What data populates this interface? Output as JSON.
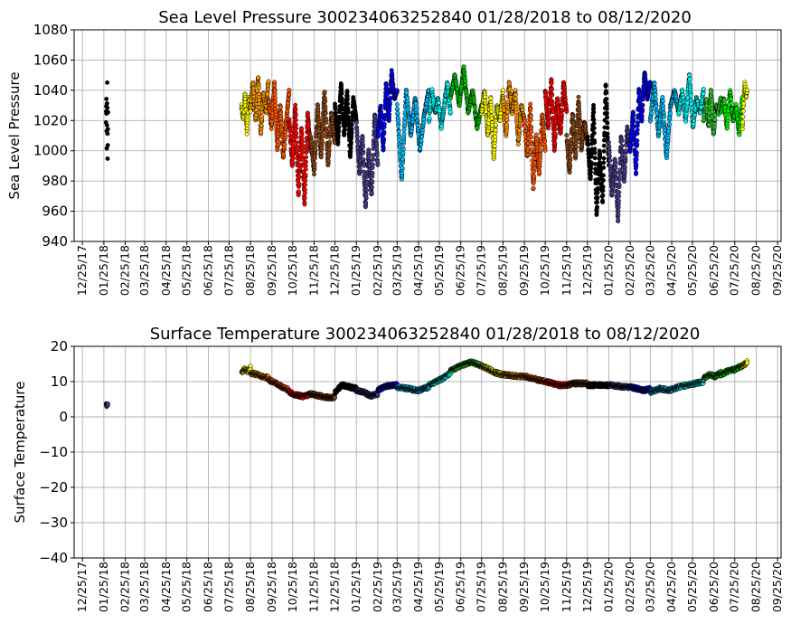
{
  "chart_data": [
    {
      "type": "scatter",
      "title": "Sea Level Pressure 300234063252840  01/28/2018 to 08/12/2020",
      "ylabel": "Sea Level Pressure",
      "xlabel": "",
      "ylim": [
        940,
        1080
      ],
      "yticks": [
        940,
        960,
        980,
        1000,
        1020,
        1040,
        1060,
        1080
      ],
      "xlim": [
        "2017-12-13",
        "2020-09-30"
      ],
      "xticks": [
        "12/25/17",
        "01/25/18",
        "02/25/18",
        "03/25/18",
        "04/25/18",
        "05/25/18",
        "06/25/18",
        "07/25/18",
        "08/25/18",
        "09/25/18",
        "10/25/18",
        "11/25/18",
        "12/25/18",
        "01/25/19",
        "02/25/19",
        "03/25/19",
        "04/25/19",
        "05/25/19",
        "06/25/19",
        "07/25/19",
        "08/25/19",
        "09/25/19",
        "10/25/19",
        "11/25/19",
        "12/25/19",
        "01/25/20",
        "02/25/20",
        "03/25/20",
        "04/25/20",
        "05/25/20",
        "06/25/20",
        "07/25/20",
        "08/25/20",
        "09/25/20"
      ],
      "grid": true,
      "segments": [
        {
          "start": "2018-01-28",
          "end": "2018-01-31",
          "color": "#000000",
          "values": [
            1020,
            1035,
            1002,
            1045,
            994,
            1025
          ]
        },
        {
          "start": "2018-08-12",
          "end": "2018-08-25",
          "color": "#ffff00",
          "values": [
            1030,
            1020,
            1038,
            1012,
            1035,
            1025
          ]
        },
        {
          "start": "2018-08-25",
          "end": "2018-09-20",
          "color": "#ff9900",
          "values": [
            1030,
            1045,
            1020,
            1050,
            1010,
            1038,
            1025,
            1047
          ]
        },
        {
          "start": "2018-09-20",
          "end": "2018-10-20",
          "color": "#ff5500",
          "values": [
            1035,
            1015,
            1045,
            1000,
            1030,
            995,
            1020,
            1040
          ]
        },
        {
          "start": "2018-10-20",
          "end": "2018-11-20",
          "color": "#ff0000",
          "values": [
            1020,
            990,
            1030,
            970,
            1015,
            965,
            1025,
            1000
          ]
        },
        {
          "start": "2018-11-20",
          "end": "2018-12-25",
          "color": "#8b4513",
          "values": [
            1010,
            985,
            1030,
            995,
            1040,
            990,
            1025,
            1005
          ]
        },
        {
          "start": "2018-12-25",
          "end": "2019-01-25",
          "color": "#000000",
          "values": [
            1030,
            1005,
            1045,
            1010,
            1040,
            995,
            1035,
            1020
          ]
        },
        {
          "start": "2019-01-25",
          "end": "2019-02-25",
          "color": "#483d8b",
          "values": [
            1020,
            985,
            1010,
            962,
            1000,
            970,
            1025,
            990
          ]
        },
        {
          "start": "2019-02-25",
          "end": "2019-03-25",
          "color": "#0000ff",
          "values": [
            1010,
            1030,
            1000,
            1045,
            1020,
            1052,
            1035,
            1040
          ]
        },
        {
          "start": "2019-03-25",
          "end": "2019-05-10",
          "color": "#00bfff",
          "values": [
            1030,
            980,
            1040,
            1010,
            1035,
            1000,
            1025,
            1040
          ]
        },
        {
          "start": "2019-05-10",
          "end": "2019-06-10",
          "color": "#00ffff",
          "values": [
            1020,
            1040,
            1025,
            1035,
            1015,
            1030,
            1045,
            1025
          ]
        },
        {
          "start": "2019-06-10",
          "end": "2019-07-25",
          "color": "#00cc00",
          "values": [
            1035,
            1050,
            1030,
            1055,
            1025,
            1040,
            1015,
            1030
          ]
        },
        {
          "start": "2019-07-25",
          "end": "2019-08-25",
          "color": "#ffff00",
          "values": [
            1025,
            1040,
            1010,
            1035,
            995,
            1030,
            1020,
            1040
          ]
        },
        {
          "start": "2019-08-25",
          "end": "2019-09-25",
          "color": "#ff9900",
          "values": [
            1035,
            1010,
            1045,
            1025,
            1040,
            1005,
            1030,
            1020
          ]
        },
        {
          "start": "2019-09-25",
          "end": "2019-10-25",
          "color": "#ff5500",
          "values": [
            1020,
            995,
            1030,
            975,
            1010,
            985,
            1025,
            1000
          ]
        },
        {
          "start": "2019-10-25",
          "end": "2019-11-25",
          "color": "#ff0000",
          "values": [
            1040,
            1015,
            1048,
            1000,
            1035,
            1010,
            1045,
            1025
          ]
        },
        {
          "start": "2019-11-25",
          "end": "2019-12-25",
          "color": "#8b4513",
          "values": [
            1010,
            985,
            1025,
            995,
            1035,
            1000,
            1020,
            1005
          ]
        },
        {
          "start": "2019-12-25",
          "end": "2020-01-25",
          "color": "#000000",
          "values": [
            1010,
            980,
            1030,
            957,
            1000,
            965,
            1045,
            990
          ]
        },
        {
          "start": "2020-01-25",
          "end": "2020-02-25",
          "color": "#483d8b",
          "values": [
            1005,
            970,
            995,
            953,
            1010,
            980,
            1015,
            1000
          ]
        },
        {
          "start": "2020-02-25",
          "end": "2020-03-25",
          "color": "#0000ff",
          "values": [
            1000,
            1025,
            985,
            1040,
            1020,
            1053,
            1035,
            1045
          ]
        },
        {
          "start": "2020-03-25",
          "end": "2020-05-05",
          "color": "#00bfff",
          "values": [
            1020,
            1045,
            1010,
            1035,
            995,
            1030,
            1040,
            1025
          ]
        },
        {
          "start": "2020-05-05",
          "end": "2020-06-10",
          "color": "#00ffff",
          "values": [
            1025,
            1040,
            1020,
            1050,
            1015,
            1035,
            1025,
            1040
          ]
        },
        {
          "start": "2020-06-10",
          "end": "2020-07-05",
          "color": "#33cc33",
          "values": [
            1020,
            1035,
            1015,
            1040,
            1010,
            1030,
            1025,
            1035
          ]
        },
        {
          "start": "2020-07-05",
          "end": "2020-08-05",
          "color": "#00ff00",
          "values": [
            1025,
            1035,
            1015,
            1040,
            1020,
            1030,
            1010,
            1035
          ]
        },
        {
          "start": "2020-08-05",
          "end": "2020-08-12",
          "color": "#ffff00",
          "values": [
            1015,
            1030,
            1045,
            1035,
            1040
          ]
        }
      ]
    },
    {
      "type": "scatter",
      "title": "Surface Temperature 300234063252840  01/28/2018 to 08/12/2020",
      "ylabel": "Surface Temperature",
      "xlabel": "",
      "ylim": [
        -40,
        20
      ],
      "yticks": [
        -40,
        -30,
        -20,
        -10,
        0,
        10,
        20
      ],
      "xlim": [
        "2017-12-13",
        "2020-09-30"
      ],
      "xticks": [
        "12/25/17",
        "01/25/18",
        "02/25/18",
        "03/25/18",
        "04/25/18",
        "05/25/18",
        "06/25/18",
        "07/25/18",
        "08/25/18",
        "09/25/18",
        "10/25/18",
        "11/25/18",
        "12/25/18",
        "01/25/19",
        "02/25/19",
        "03/25/19",
        "04/25/19",
        "05/25/19",
        "06/25/19",
        "07/25/19",
        "08/25/19",
        "09/25/19",
        "10/25/19",
        "11/25/19",
        "12/25/19",
        "01/25/20",
        "02/25/20",
        "03/25/20",
        "04/25/20",
        "05/25/20",
        "06/25/20",
        "07/25/20",
        "08/25/20",
        "09/25/20"
      ],
      "grid": true,
      "segments": [
        {
          "start": "2018-01-28",
          "end": "2018-01-31",
          "color": "#483d8b",
          "values": [
            3.5,
            3.4,
            3.6,
            3.5
          ]
        },
        {
          "start": "2018-08-12",
          "end": "2018-08-25",
          "color": "#ffff00",
          "values": [
            12.5,
            13.5,
            12.8,
            14.0
          ]
        },
        {
          "start": "2018-08-25",
          "end": "2018-09-20",
          "color": "#ff9900",
          "values": [
            12.5,
            12.0,
            11.5,
            11.0
          ]
        },
        {
          "start": "2018-09-20",
          "end": "2018-10-20",
          "color": "#ff5500",
          "values": [
            10.5,
            9.5,
            8.5,
            7.5
          ]
        },
        {
          "start": "2018-10-20",
          "end": "2018-11-20",
          "color": "#ff0000",
          "values": [
            7.0,
            6.2,
            5.8,
            6.5
          ]
        },
        {
          "start": "2018-11-20",
          "end": "2018-12-25",
          "color": "#8b4513",
          "values": [
            6.5,
            6.0,
            5.5,
            5.5
          ]
        },
        {
          "start": "2018-12-25",
          "end": "2019-01-25",
          "color": "#000000",
          "values": [
            7.0,
            9.0,
            8.5,
            8.0
          ]
        },
        {
          "start": "2019-01-25",
          "end": "2019-02-25",
          "color": "#483d8b",
          "values": [
            7.5,
            7.0,
            6.0,
            6.5
          ]
        },
        {
          "start": "2019-02-25",
          "end": "2019-03-25",
          "color": "#0000ff",
          "values": [
            7.5,
            8.5,
            9.0,
            9.0
          ]
        },
        {
          "start": "2019-03-25",
          "end": "2019-05-10",
          "color": "#00bfff",
          "values": [
            8.5,
            8.0,
            7.5,
            8.5
          ]
        },
        {
          "start": "2019-05-10",
          "end": "2019-06-10",
          "color": "#00ffff",
          "values": [
            9.0,
            10.0,
            11.0,
            12.5
          ]
        },
        {
          "start": "2019-06-10",
          "end": "2019-07-25",
          "color": "#33cc33",
          "values": [
            13.0,
            14.5,
            15.5,
            14.5
          ]
        },
        {
          "start": "2019-07-25",
          "end": "2019-08-25",
          "color": "#ffff00",
          "values": [
            14.5,
            13.5,
            12.5,
            12.0
          ]
        },
        {
          "start": "2019-08-25",
          "end": "2019-09-25",
          "color": "#ff9900",
          "values": [
            12.0,
            11.8,
            11.5,
            11.5
          ]
        },
        {
          "start": "2019-09-25",
          "end": "2019-10-25",
          "color": "#ff5500",
          "values": [
            11.5,
            11.0,
            10.5,
            10.0
          ]
        },
        {
          "start": "2019-10-25",
          "end": "2019-11-25",
          "color": "#ff0000",
          "values": [
            10.0,
            9.5,
            9.0,
            9.0
          ]
        },
        {
          "start": "2019-11-25",
          "end": "2019-12-25",
          "color": "#8b4513",
          "values": [
            9.0,
            9.5,
            9.5,
            9.5
          ]
        },
        {
          "start": "2019-12-25",
          "end": "2020-01-25",
          "color": "#000000",
          "values": [
            9.0,
            9.0,
            9.0,
            9.0
          ]
        },
        {
          "start": "2020-01-25",
          "end": "2020-02-25",
          "color": "#483d8b",
          "values": [
            9.0,
            8.8,
            8.5,
            8.5
          ]
        },
        {
          "start": "2020-02-25",
          "end": "2020-03-25",
          "color": "#0000ff",
          "values": [
            8.5,
            8.0,
            7.5,
            8.0
          ]
        },
        {
          "start": "2020-03-25",
          "end": "2020-05-05",
          "color": "#00bfff",
          "values": [
            7.0,
            8.0,
            7.5,
            8.5
          ]
        },
        {
          "start": "2020-05-05",
          "end": "2020-06-10",
          "color": "#00ffff",
          "values": [
            8.5,
            9.0,
            9.5,
            10.0
          ]
        },
        {
          "start": "2020-06-10",
          "end": "2020-07-05",
          "color": "#33cc33",
          "values": [
            11.0,
            12.0,
            11.5,
            12.5
          ]
        },
        {
          "start": "2020-07-05",
          "end": "2020-08-05",
          "color": "#00ff00",
          "values": [
            12.0,
            13.0,
            13.5,
            14.5
          ]
        },
        {
          "start": "2020-08-05",
          "end": "2020-08-12",
          "color": "#ffff00",
          "values": [
            14.5,
            15.0,
            15.5
          ]
        }
      ]
    }
  ]
}
